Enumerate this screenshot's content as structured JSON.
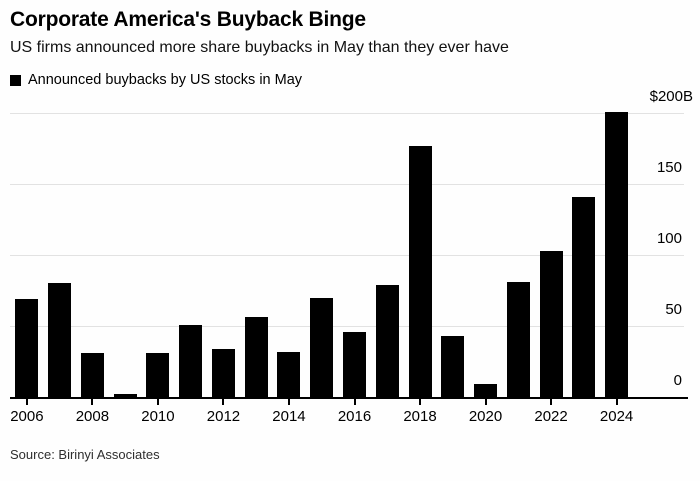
{
  "header": {
    "title": "Corporate America's Buyback Binge",
    "subtitle": "US firms announced more share buybacks in May than they ever have"
  },
  "legend": {
    "label": "Announced buybacks by US stocks in May",
    "swatch_color": "#000000"
  },
  "chart_data": {
    "type": "bar",
    "title": "Corporate America's Buyback Binge",
    "subtitle": "US firms announced more share buybacks in May than they ever have",
    "series_name": "Announced buybacks by US stocks in May",
    "unit": "$ billions",
    "categories": [
      "2006",
      "2007",
      "2008",
      "2009",
      "2010",
      "2011",
      "2012",
      "2013",
      "2014",
      "2015",
      "2016",
      "2017",
      "2018",
      "2019",
      "2020",
      "2021",
      "2022",
      "2023",
      "2024"
    ],
    "values": [
      69,
      80,
      31,
      2,
      31,
      51,
      34,
      56,
      32,
      70,
      46,
      79,
      177,
      43,
      9,
      81,
      103,
      141,
      201
    ],
    "ylim": [
      0,
      200
    ],
    "yticks": [
      {
        "value": 0,
        "label": "0"
      },
      {
        "value": 50,
        "label": "50"
      },
      {
        "value": 100,
        "label": "100"
      },
      {
        "value": 150,
        "label": "150"
      },
      {
        "value": 200,
        "label": "$200B"
      }
    ],
    "xtick_labels": [
      "2006",
      "2008",
      "2010",
      "2012",
      "2014",
      "2016",
      "2018",
      "2020",
      "2022",
      "2024"
    ],
    "axis_side": "right",
    "grid": "horizontal",
    "legend_position": "top-left",
    "bar_color": "#000000",
    "gridline_color": "#e2e2e2"
  },
  "footer": {
    "source": "Source: Birinyi Associates"
  }
}
